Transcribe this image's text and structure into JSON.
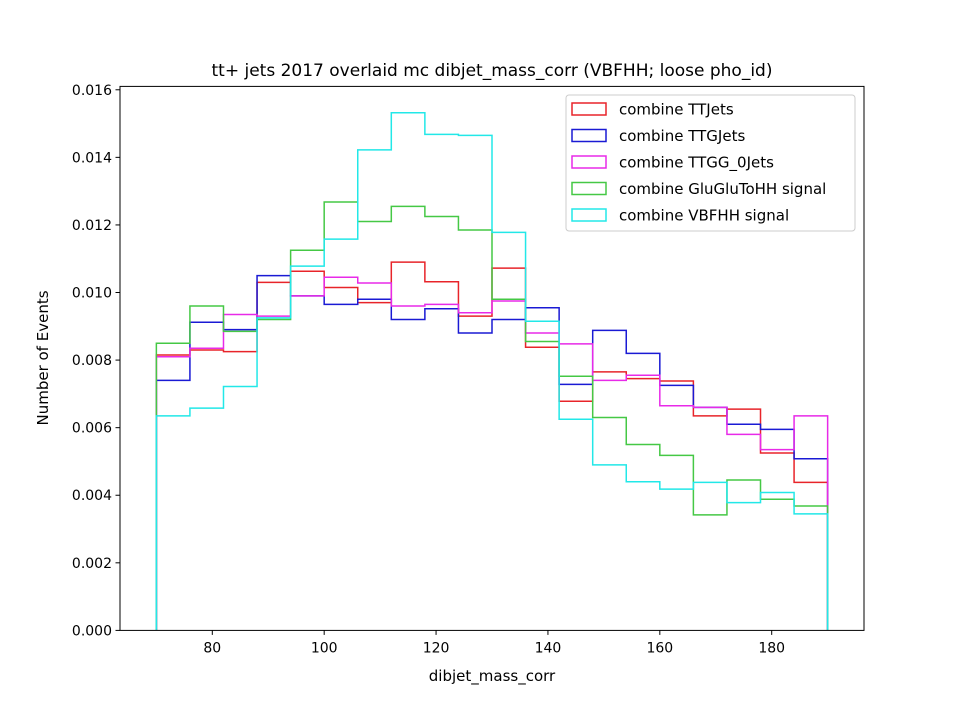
{
  "chart_data": {
    "type": "histogram-step",
    "title": "tt+ jets 2017 overlaid mc dibjet_mass_corr (VBFHH; loose pho_id)",
    "xlabel": "dibjet_mass_corr",
    "ylabel": "Number of Events",
    "xlim": [
      63.5,
      196.5
    ],
    "ylim": [
      0,
      0.0161
    ],
    "x_ticks": [
      80,
      100,
      120,
      140,
      160,
      180
    ],
    "x_tick_labels": [
      "80",
      "100",
      "120",
      "140",
      "160",
      "180"
    ],
    "y_ticks": [
      0,
      0.002,
      0.004,
      0.006,
      0.008,
      0.01,
      0.012,
      0.014,
      0.016
    ],
    "y_tick_labels": [
      "0.000",
      "0.002",
      "0.004",
      "0.006",
      "0.008",
      "0.010",
      "0.012",
      "0.014",
      "0.016"
    ],
    "bin_edges": [
      70,
      76,
      82,
      88,
      94,
      100,
      106,
      112,
      118,
      124,
      130,
      136,
      142,
      148,
      154,
      160,
      166,
      172,
      178,
      184,
      190
    ],
    "legend_position": "top-right",
    "series": [
      {
        "name": "combine TTJets",
        "color": "#e8242a",
        "values": [
          0.00815,
          0.0083,
          0.00825,
          0.0103,
          0.01063,
          0.01015,
          0.0097,
          0.0109,
          0.01032,
          0.0093,
          0.01072,
          0.00838,
          0.00678,
          0.00765,
          0.00745,
          0.00738,
          0.00635,
          0.00655,
          0.00525,
          0.00438
        ]
      },
      {
        "name": "combine TTGJets",
        "color": "#1a1ad4",
        "values": [
          0.0074,
          0.00912,
          0.0089,
          0.0105,
          0.0099,
          0.00965,
          0.0098,
          0.0092,
          0.00952,
          0.0088,
          0.0092,
          0.00955,
          0.00728,
          0.00888,
          0.0082,
          0.00725,
          0.0066,
          0.0061,
          0.00595,
          0.00508
        ]
      },
      {
        "name": "combine TTGG_0Jets",
        "color": "#e82ae8",
        "values": [
          0.0081,
          0.00835,
          0.00935,
          0.0093,
          0.0099,
          0.01045,
          0.01028,
          0.0096,
          0.00965,
          0.0094,
          0.00975,
          0.0088,
          0.00848,
          0.0074,
          0.00755,
          0.00665,
          0.0066,
          0.0058,
          0.00535,
          0.00635
        ]
      },
      {
        "name": "combine GluGluToHH signal",
        "color": "#45c845",
        "values": [
          0.0085,
          0.0096,
          0.00885,
          0.0092,
          0.01125,
          0.01268,
          0.0121,
          0.01255,
          0.01225,
          0.01185,
          0.0098,
          0.00855,
          0.00752,
          0.0063,
          0.0055,
          0.00518,
          0.00342,
          0.00445,
          0.00388,
          0.00368
        ]
      },
      {
        "name": "combine VBFHH signal",
        "color": "#22e8e8",
        "values": [
          0.00635,
          0.00658,
          0.00722,
          0.00925,
          0.01078,
          0.01158,
          0.01422,
          0.01532,
          0.01468,
          0.01465,
          0.01178,
          0.00915,
          0.00625,
          0.0049,
          0.0044,
          0.00418,
          0.00438,
          0.00378,
          0.00408,
          0.00345
        ]
      }
    ]
  }
}
